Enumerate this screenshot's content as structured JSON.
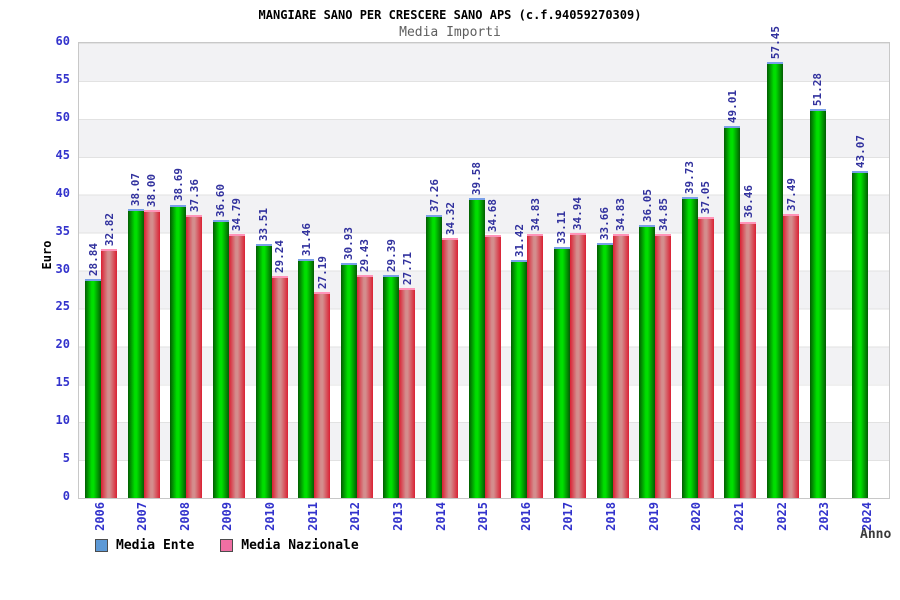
{
  "header": {
    "title": "MANGIARE SANO PER CRESCERE SANO APS (c.f.94059270309)",
    "subtitle": "Media Importi"
  },
  "axes": {
    "y_label": "Euro",
    "x_label": "Anno"
  },
  "legend": [
    {
      "label": "Media Ente",
      "color": "#5d99d6"
    },
    {
      "label": "Media Nazionale",
      "color": "#ef6fa3"
    }
  ],
  "colors": {
    "tick_label": "#3333cc",
    "value_label": "#32329e",
    "band_gray": "#f2f2f4",
    "plot_border": "#c8c8c8"
  },
  "chart_data": {
    "type": "bar",
    "title": "MANGIARE SANO PER CRESCERE SANO APS (c.f.94059270309)",
    "subtitle": "Media Importi",
    "xlabel": "Anno",
    "ylabel": "Euro",
    "ylim": [
      0,
      60
    ],
    "yticks": [
      0,
      5,
      10,
      15,
      20,
      25,
      30,
      35,
      40,
      45,
      50,
      55,
      60
    ],
    "grid": true,
    "legend_position": "bottom-left",
    "categories": [
      "2006",
      "2007",
      "2008",
      "2009",
      "2010",
      "2011",
      "2012",
      "2013",
      "2014",
      "2015",
      "2016",
      "2017",
      "2018",
      "2019",
      "2020",
      "2021",
      "2022",
      "2023",
      "2024"
    ],
    "series": [
      {
        "name": "Media Ente",
        "legend_color": "#5d99d6",
        "bar_gradient": [
          "#025c02",
          "#00df00",
          "#035c03"
        ],
        "cap_color": "#7aa0e8",
        "values": [
          28.84,
          38.07,
          38.69,
          36.6,
          33.51,
          31.46,
          30.93,
          29.39,
          37.26,
          39.58,
          31.42,
          33.11,
          33.66,
          36.05,
          39.73,
          49.01,
          57.45,
          51.28,
          43.07
        ],
        "labels": [
          "28.84",
          "38.07",
          "38.69",
          "36.60",
          "33.51",
          "31.46",
          "30.93",
          "29.39",
          "37.26",
          "39.58",
          "31.42",
          "33.11",
          "33.66",
          "36.05",
          "39.73",
          "49.01",
          "57.45",
          "51.28",
          "43.07"
        ]
      },
      {
        "name": "Media Nazionale",
        "legend_color": "#ef6fa3",
        "bar_gradient": [
          "#da2033",
          "#d48d8d",
          "#da2033"
        ],
        "cap_color": "#ff93b8",
        "values": [
          32.82,
          38.0,
          37.36,
          34.79,
          29.24,
          27.19,
          29.43,
          27.71,
          34.32,
          34.68,
          34.83,
          34.94,
          34.83,
          34.85,
          37.05,
          36.46,
          37.49,
          null,
          null
        ],
        "labels": [
          "32.82",
          "38.00",
          "37.36",
          "34.79",
          "29.24",
          "27.19",
          "29.43",
          "27.71",
          "34.32",
          "34.68",
          "34.83",
          "34.94",
          "34.83",
          "34.85",
          "37.05",
          "36.46",
          "37.49",
          null,
          null
        ]
      }
    ]
  }
}
